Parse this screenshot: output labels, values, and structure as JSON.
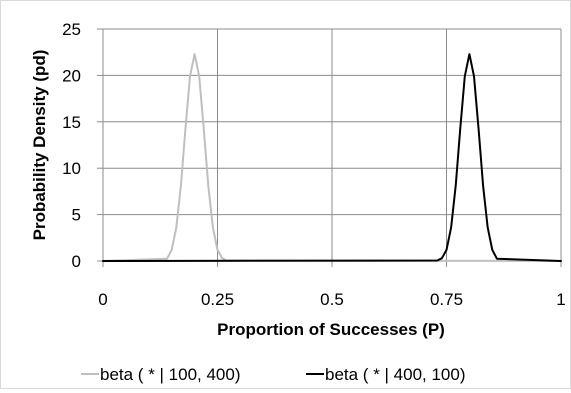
{
  "chart_data": {
    "type": "line",
    "title": "",
    "xlabel": "Proportion of Successes (P)",
    "ylabel": "Probability Density (pd)",
    "xlim": [
      0,
      1
    ],
    "ylim": [
      0,
      25
    ],
    "x_ticks": [
      0,
      0.25,
      0.5,
      0.75,
      1
    ],
    "x_tick_labels": [
      "0",
      "0.25",
      "0.5",
      "0.75",
      "1"
    ],
    "y_ticks": [
      0,
      5,
      10,
      15,
      20,
      25
    ],
    "y_tick_labels": [
      "0",
      "5",
      "10",
      "15",
      "20",
      "25"
    ],
    "grid": true,
    "legend_position": "bottom",
    "series": [
      {
        "name": "beta ( * | 100, 400)",
        "color": "#bfbfbf",
        "alpha": 100,
        "beta": 400,
        "x": [
          0.0,
          0.14,
          0.15,
          0.16,
          0.17,
          0.18,
          0.19,
          0.2,
          0.21,
          0.22,
          0.23,
          0.24,
          0.25,
          0.26,
          0.27,
          1.0
        ],
        "y": [
          0.0,
          0.25,
          1.2,
          3.6,
          8.1,
          14.2,
          19.9,
          22.3,
          19.9,
          14.2,
          8.1,
          3.6,
          1.2,
          0.3,
          0.05,
          0.0
        ]
      },
      {
        "name": "beta ( * | 400, 100)",
        "color": "#000000",
        "alpha": 400,
        "beta": 100,
        "x": [
          0.0,
          0.73,
          0.74,
          0.75,
          0.76,
          0.77,
          0.78,
          0.79,
          0.8,
          0.81,
          0.82,
          0.83,
          0.84,
          0.85,
          0.86,
          1.0
        ],
        "y": [
          0.0,
          0.05,
          0.3,
          1.2,
          3.6,
          8.1,
          14.2,
          19.9,
          22.3,
          19.9,
          14.2,
          8.1,
          3.6,
          1.2,
          0.25,
          0.0
        ]
      }
    ]
  }
}
